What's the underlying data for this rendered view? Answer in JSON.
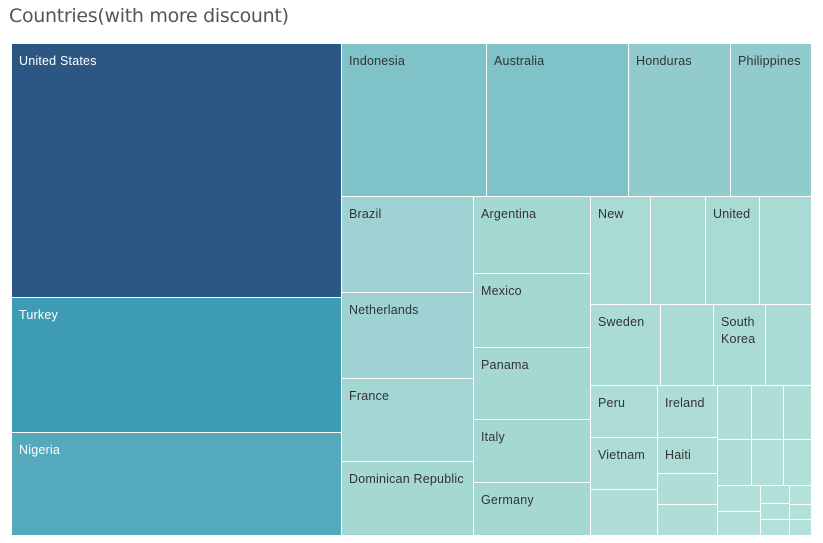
{
  "title": "Countries(with more discount)",
  "chart_data": {
    "type": "treemap",
    "title": "Countries(with more discount)",
    "color_scale": {
      "low": "#a6d8d3",
      "high": "#2c5784"
    },
    "items": [
      {
        "label": "United States",
        "value": 100,
        "color": "#2c5784"
      },
      {
        "label": "Turkey",
        "value": 34.8,
        "color": "#3e9bb4"
      },
      {
        "label": "Nigeria",
        "value": 31.9,
        "color": "#55a9bc"
      },
      {
        "label": "Indonesia",
        "value": 17.3,
        "color": "#7fc2c8"
      },
      {
        "label": "Australia",
        "value": 16.8,
        "color": "#7fc2c8"
      },
      {
        "label": "Honduras",
        "value": 12.2,
        "color": "#92cbce"
      },
      {
        "label": "Philippines",
        "value": 9.7,
        "color": "#92cbce"
      },
      {
        "label": "Brazil",
        "value": 10.6,
        "color": "#9fd3d3"
      },
      {
        "label": "Netherlands",
        "value": 9.9,
        "color": "#9fd3d3"
      },
      {
        "label": "France",
        "value": 9.7,
        "color": "#a3d5d3"
      },
      {
        "label": "Dominican Republic",
        "value": 9.2,
        "color": "#a6d8d3"
      },
      {
        "label": "Argentina",
        "value": 6.7,
        "color": "#a6d8d3"
      },
      {
        "label": "Mexico",
        "value": 6.6,
        "color": "#a6d8d3"
      },
      {
        "label": "Panama",
        "value": 6.6,
        "color": "#a6d8d3"
      },
      {
        "label": "Italy",
        "value": 5.6,
        "color": "#a6d8d3"
      },
      {
        "label": "Germany",
        "value": 4.8,
        "color": "#a6d8d3"
      },
      {
        "label": "New",
        "value": 3.4,
        "color": "#a9dad4"
      },
      {
        "label": "",
        "value": 3.4,
        "color": "#a9dad4"
      },
      {
        "label": "United",
        "value": 2.8,
        "color": "#a9dad4"
      },
      {
        "label": "",
        "value": 2.8,
        "color": "#a9dad4"
      },
      {
        "label": "Sweden",
        "value": 3.6,
        "color": "#abdbd5"
      },
      {
        "label": "",
        "value": 2.8,
        "color": "#abdbd5"
      },
      {
        "label": "South\nKorea",
        "value": 2.6,
        "color": "#abdbd5"
      },
      {
        "label": "",
        "value": 2.5,
        "color": "#abdbd5"
      },
      {
        "label": "Peru",
        "value": 2.0,
        "color": "#adddd6"
      },
      {
        "label": "Ireland",
        "value": 1.9,
        "color": "#adddd6"
      },
      {
        "label": "Vietnam",
        "value": 2.0,
        "color": "#adddd6"
      },
      {
        "label": "Haiti",
        "value": 1.3,
        "color": "#adddd6"
      },
      {
        "label": "",
        "value": 0.9,
        "color": "#b0ded7"
      },
      {
        "label": "",
        "value": 1.5,
        "color": "#b0ded7"
      },
      {
        "label": "",
        "value": 0.9,
        "color": "#b0ded7"
      },
      {
        "label": "",
        "value": 0.9,
        "color": "#b0ded7"
      },
      {
        "label": "",
        "value": 1.0,
        "color": "#b0ded7"
      },
      {
        "label": "",
        "value": 0.9,
        "color": "#b0ded7"
      },
      {
        "label": "",
        "value": 0.9,
        "color": "#b0ded7"
      },
      {
        "label": "",
        "value": 0.9,
        "color": "#b2e0d8"
      },
      {
        "label": "",
        "value": 0.9,
        "color": "#b2e0d8"
      },
      {
        "label": "",
        "value": 0.5,
        "color": "#b2e0d8"
      },
      {
        "label": "",
        "value": 0.3,
        "color": "#b2e0d8"
      },
      {
        "label": "",
        "value": 0.5,
        "color": "#b2e0d8"
      },
      {
        "label": "",
        "value": 0.3,
        "color": "#b2e0d8"
      },
      {
        "label": "",
        "value": 0.2,
        "color": "#b4e1d9"
      },
      {
        "label": "",
        "value": 0.2,
        "color": "#b4e1d9"
      },
      {
        "label": "",
        "value": 0.1,
        "color": "#b4e1d9"
      },
      {
        "label": "",
        "value": 0.1,
        "color": "#b4e1d9"
      }
    ]
  }
}
